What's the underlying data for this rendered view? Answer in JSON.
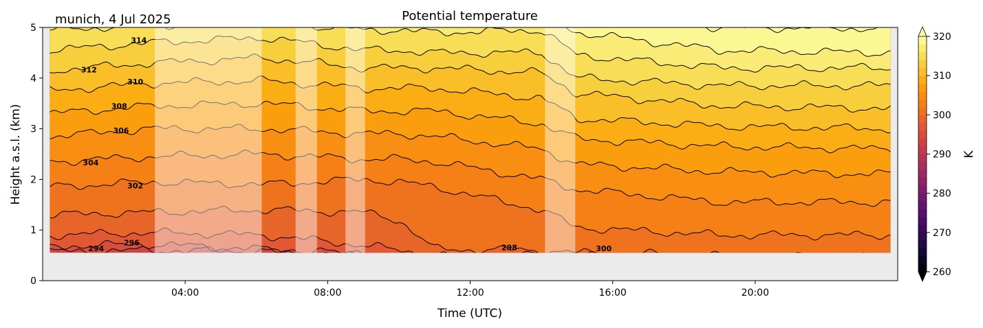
{
  "chart_data": {
    "type": "contour",
    "title": "Potential temperature",
    "subtitle": "munich, 4 Jul 2025",
    "xlabel": "Time (UTC)",
    "ylabel": "Height a.s.l. (km)",
    "xlim": [
      0,
      24
    ],
    "ylim": [
      0,
      5
    ],
    "xticks": [
      {
        "v": 4,
        "label": "04:00"
      },
      {
        "v": 8,
        "label": "08:00"
      },
      {
        "v": 12,
        "label": "12:00"
      },
      {
        "v": 16,
        "label": "16:00"
      },
      {
        "v": 20,
        "label": "20:00"
      }
    ],
    "yticks": [
      0,
      1,
      2,
      3,
      4,
      5
    ],
    "data_extent": {
      "t": [
        0.2,
        23.8
      ],
      "z": [
        0.55,
        5
      ]
    },
    "masked_intervals": [
      [
        3.15,
        6.15
      ],
      [
        7.1,
        7.7
      ],
      [
        8.5,
        9.05
      ],
      [
        14.1,
        14.95
      ]
    ],
    "levels": [
      294,
      296,
      298,
      300,
      302,
      304,
      306,
      308,
      310,
      312,
      314,
      316,
      318,
      320
    ],
    "profiles": [
      {
        "t": 0.2,
        "z": [
          0.57,
          0.68,
          0.9,
          1.3,
          1.85,
          2.35,
          2.85,
          3.3,
          3.75,
          4.15,
          4.55,
          4.95,
          5.3,
          5.7
        ]
      },
      {
        "t": 3.1,
        "z": [
          0.6,
          0.72,
          0.95,
          1.35,
          1.95,
          2.45,
          3.0,
          3.45,
          3.9,
          4.3,
          4.7,
          5.05,
          5.4,
          5.8
        ]
      },
      {
        "t": 6.2,
        "z": [
          0.58,
          0.62,
          0.9,
          1.4,
          1.9,
          2.5,
          3.0,
          3.5,
          3.95,
          4.4,
          4.8,
          5.1,
          5.5,
          5.9
        ]
      },
      {
        "t": 9.0,
        "z": [
          0.5,
          0.53,
          0.7,
          1.35,
          2.0,
          2.4,
          2.9,
          3.35,
          3.8,
          4.2,
          4.55,
          4.95,
          5.3,
          5.7
        ]
      },
      {
        "t": 10.0,
        "z": [
          0.4,
          0.45,
          0.6,
          1.2,
          1.95,
          2.4,
          2.9,
          3.35,
          3.8,
          4.2,
          4.55,
          4.95,
          5.3,
          5.7
        ]
      },
      {
        "t": 11.0,
        "z": [
          0.3,
          0.4,
          0.5,
          0.62,
          1.85,
          2.35,
          2.85,
          3.35,
          3.8,
          4.2,
          4.5,
          4.9,
          5.3,
          5.7
        ]
      },
      {
        "t": 14.0,
        "z": [
          0.3,
          0.4,
          0.5,
          0.6,
          1.4,
          2.0,
          2.6,
          3.1,
          3.6,
          4.1,
          4.5,
          4.95,
          5.3,
          5.7
        ]
      },
      {
        "t": 15.0,
        "z": [
          0.3,
          0.4,
          0.5,
          0.55,
          1.05,
          1.8,
          2.3,
          2.8,
          3.2,
          3.7,
          4.0,
          4.45,
          4.9,
          5.3
        ]
      },
      {
        "t": 19.0,
        "z": [
          0.2,
          0.3,
          0.4,
          0.5,
          0.9,
          1.55,
          2.15,
          2.65,
          3.05,
          3.45,
          3.85,
          4.2,
          4.55,
          5.0
        ]
      },
      {
        "t": 23.8,
        "z": [
          0.2,
          0.3,
          0.4,
          0.45,
          0.9,
          1.55,
          2.1,
          2.6,
          3.0,
          3.4,
          3.85,
          4.2,
          4.5,
          4.98
        ]
      }
    ],
    "contour_labels": [
      {
        "text": "314",
        "t": 2.7,
        "z": 4.75
      },
      {
        "text": "312",
        "t": 1.3,
        "z": 4.17
      },
      {
        "text": "310",
        "t": 2.6,
        "z": 3.93
      },
      {
        "text": "308",
        "t": 2.15,
        "z": 3.45
      },
      {
        "text": "306",
        "t": 2.2,
        "z": 2.97
      },
      {
        "text": "304",
        "t": 1.35,
        "z": 2.33
      },
      {
        "text": "302",
        "t": 2.6,
        "z": 1.88
      },
      {
        "text": "296",
        "t": 2.5,
        "z": 0.75
      },
      {
        "text": "294",
        "t": 1.5,
        "z": 0.64
      },
      {
        "text": "298",
        "t": 13.1,
        "z": 0.66
      },
      {
        "text": "300",
        "t": 15.75,
        "z": 0.64
      }
    ],
    "colorbar": {
      "label": "K",
      "range": [
        260,
        320
      ],
      "ticks": [
        260,
        270,
        280,
        290,
        300,
        310,
        320
      ],
      "colormap": "inferno",
      "extend": "both"
    },
    "colors": {
      "missing_background": "#ebebeb",
      "mask_overlay": "#ffffff"
    }
  }
}
